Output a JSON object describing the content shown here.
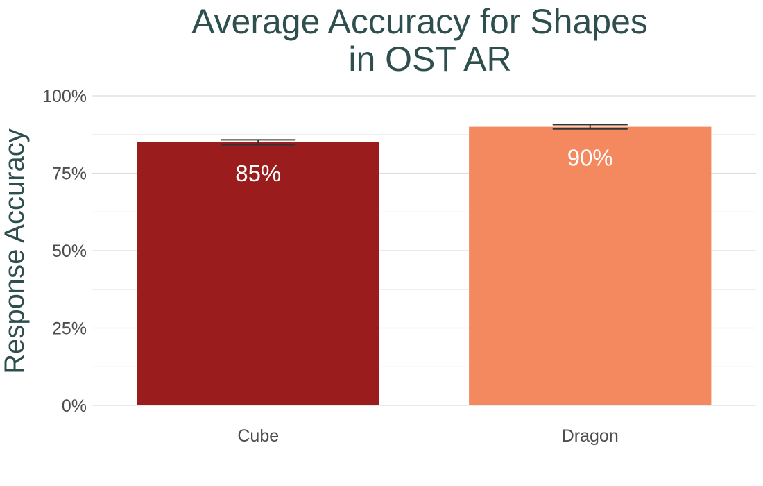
{
  "chart_data": {
    "type": "bar",
    "title": [
      "Average Accuracy for Shapes",
      "in OST AR"
    ],
    "xlabel": "",
    "ylabel": "Response Accuracy",
    "categories": [
      "Cube",
      "Dragon"
    ],
    "values": [
      85,
      90
    ],
    "data_labels": [
      "85%",
      "90%"
    ],
    "error_bars": [
      {
        "low": 84.2,
        "high": 85.8
      },
      {
        "low": 89.3,
        "high": 90.7
      }
    ],
    "bar_colors": [
      "#9b1c1c",
      "#f4895f"
    ],
    "ylim": [
      0,
      100
    ],
    "yticks": [
      0,
      25,
      50,
      75,
      100
    ],
    "ytick_labels": [
      "0%",
      "25%",
      "50%",
      "75%",
      "100%"
    ],
    "grid": true,
    "legend": "none"
  },
  "colors": {
    "title": "#2f4f4f",
    "tick_text": "#4d4d4d",
    "data_label": "#ffffff",
    "error_bar": "#333333"
  }
}
